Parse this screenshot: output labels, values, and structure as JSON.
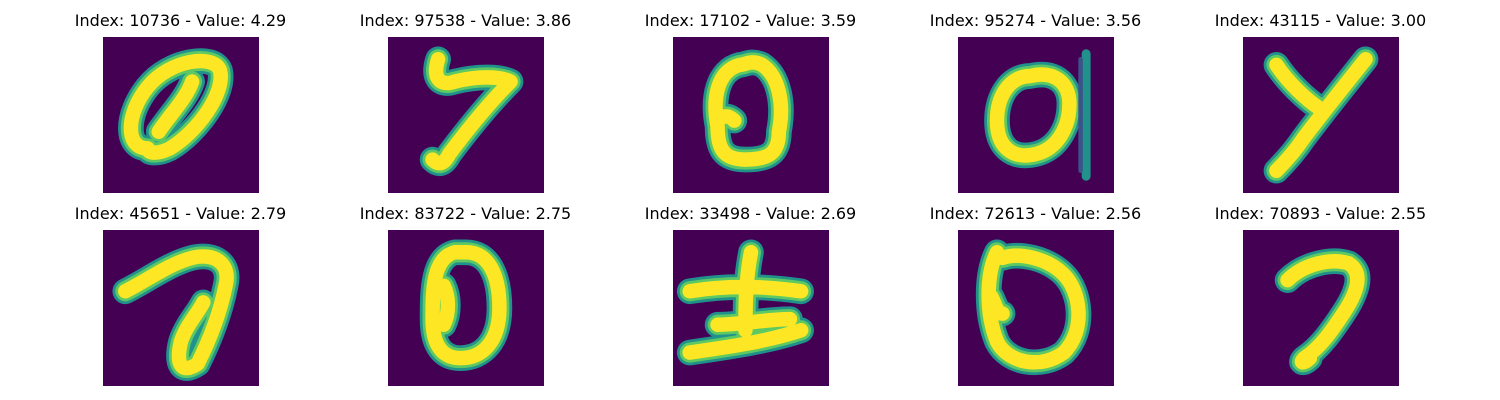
{
  "figure": {
    "colors": {
      "background": "#440154",
      "stroke_outer": "#21918c",
      "stroke_mid": "#5ec962",
      "stroke_inner": "#fde725"
    },
    "panels": [
      {
        "title": "Index: 10736 - Value: 4.29"
      },
      {
        "title": "Index: 97538 - Value: 3.86"
      },
      {
        "title": "Index: 17102 - Value: 3.59"
      },
      {
        "title": "Index: 95274 - Value: 3.56"
      },
      {
        "title": "Index: 43115 - Value: 3.00"
      },
      {
        "title": "Index: 45651 - Value: 2.79"
      },
      {
        "title": "Index: 83722 - Value: 2.75"
      },
      {
        "title": "Index: 33498 - Value: 2.69"
      },
      {
        "title": "Index: 72613 - Value: 2.56"
      },
      {
        "title": "Index: 70893 - Value: 2.55"
      }
    ]
  }
}
